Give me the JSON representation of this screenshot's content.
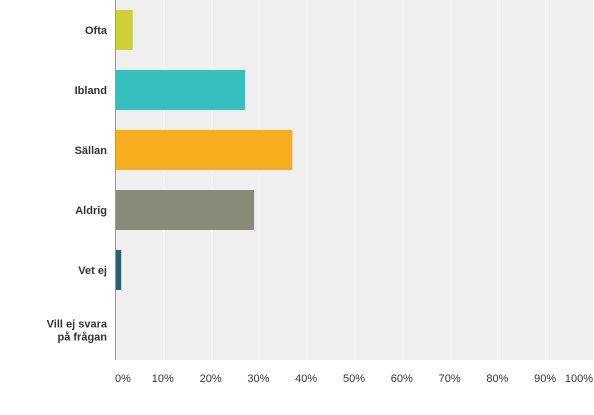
{
  "chart_data": {
    "type": "bar",
    "orientation": "horizontal",
    "categories": [
      "Ofta",
      "Ibland",
      "Sällan",
      "Aldrig",
      "Vet ej",
      "Vill ej svara\npå frågan"
    ],
    "values": [
      3.7,
      27.2,
      37.1,
      29.1,
      1.3,
      0.2
    ],
    "colors": [
      "#cdd133",
      "#35bfbf",
      "#f6ae1e",
      "#8a8a78",
      "#2d5f6e",
      "#999999"
    ],
    "xlim": [
      0,
      100
    ],
    "xticks": [
      0,
      10,
      20,
      30,
      40,
      50,
      60,
      70,
      80,
      90,
      100
    ],
    "xtick_labels": [
      "0%",
      "10%",
      "20%",
      "30%",
      "40%",
      "50%",
      "60%",
      "70%",
      "80%",
      "90%",
      "100%"
    ],
    "title": "",
    "xlabel": "",
    "ylabel": "",
    "grid": true,
    "legend": "none",
    "plot_background": "#efefef",
    "grid_color": "#ffffff",
    "axis_color": "#999999",
    "label_color": "#333333"
  }
}
